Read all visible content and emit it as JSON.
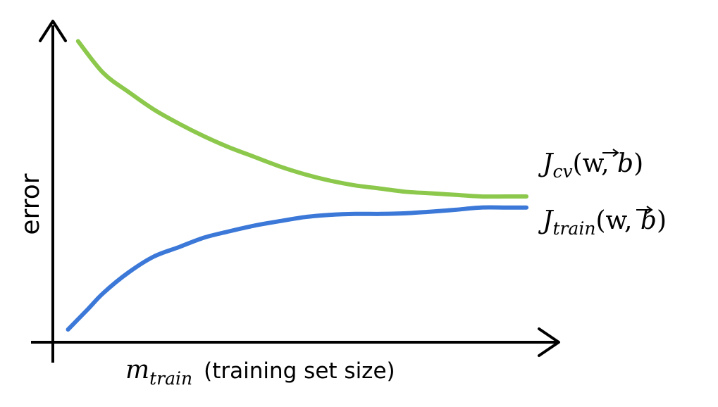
{
  "chart_data": {
    "type": "line",
    "ylabel": "error",
    "xlabel": {
      "symbol": "m",
      "subscript": "train",
      "description": "(training set size)"
    },
    "xlim": [
      0,
      10
    ],
    "ylim": [
      0,
      10
    ],
    "grid": false,
    "legend": "inline-right",
    "series": [
      {
        "name": {
          "symbol": "J",
          "subscript": "cv",
          "args_open": "(",
          "vec": "w",
          "args_sep": ", ",
          "b": "b",
          "args_close": ")"
        },
        "color": "#8cc84b",
        "x": [
          0.5,
          1,
          1.5,
          2,
          2.5,
          3,
          3.5,
          4,
          4.5,
          5,
          5.5,
          6,
          6.5,
          7,
          7.5,
          8,
          8.5,
          9,
          9.4
        ],
        "values": [
          9.5,
          8.5,
          7.9,
          7.35,
          6.9,
          6.5,
          6.15,
          5.85,
          5.55,
          5.3,
          5.1,
          4.95,
          4.85,
          4.75,
          4.7,
          4.65,
          4.6,
          4.6,
          4.6
        ]
      },
      {
        "name": {
          "symbol": "J",
          "subscript": "train",
          "args_open": "(",
          "vec": "w",
          "args_sep": ", ",
          "b": "b",
          "args_close": ")"
        },
        "color": "#3b78d8",
        "x": [
          0.3,
          0.7,
          1,
          1.5,
          2,
          2.5,
          3,
          3.5,
          4,
          4.5,
          5,
          5.5,
          6,
          6.5,
          7,
          7.5,
          8,
          8.5,
          9,
          9.4
        ],
        "values": [
          0.4,
          1.05,
          1.55,
          2.2,
          2.7,
          3.0,
          3.3,
          3.5,
          3.68,
          3.82,
          3.95,
          4.02,
          4.05,
          4.05,
          4.07,
          4.12,
          4.18,
          4.25,
          4.25,
          4.25
        ]
      }
    ]
  }
}
